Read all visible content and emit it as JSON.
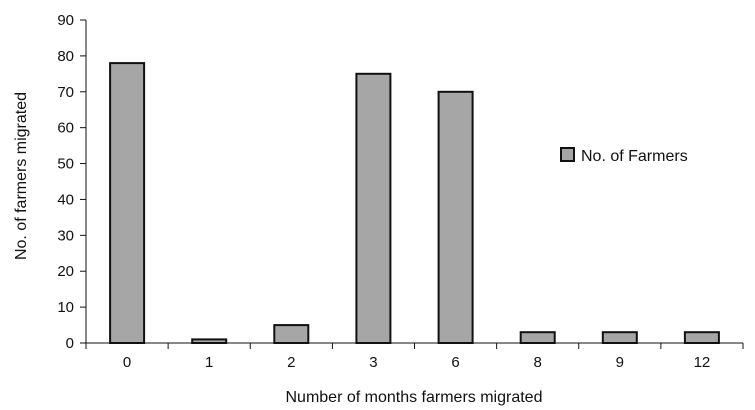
{
  "chart_data": {
    "type": "bar",
    "title": "",
    "xlabel": "Number of months farmers migrated",
    "ylabel": "No. of farmers migrated",
    "ylim": [
      0,
      90
    ],
    "yticks": [
      0,
      10,
      20,
      30,
      40,
      50,
      60,
      70,
      80,
      90
    ],
    "grid": false,
    "legend_position": "right",
    "categories": [
      "0",
      "1",
      "2",
      "3",
      "6",
      "8",
      "9",
      "12"
    ],
    "series": [
      {
        "name": "No. of Farmers",
        "values": [
          78,
          1,
          5,
          75,
          70,
          3,
          3,
          3
        ],
        "color": "#a6a6a6",
        "edge_color": "#111111"
      }
    ]
  }
}
